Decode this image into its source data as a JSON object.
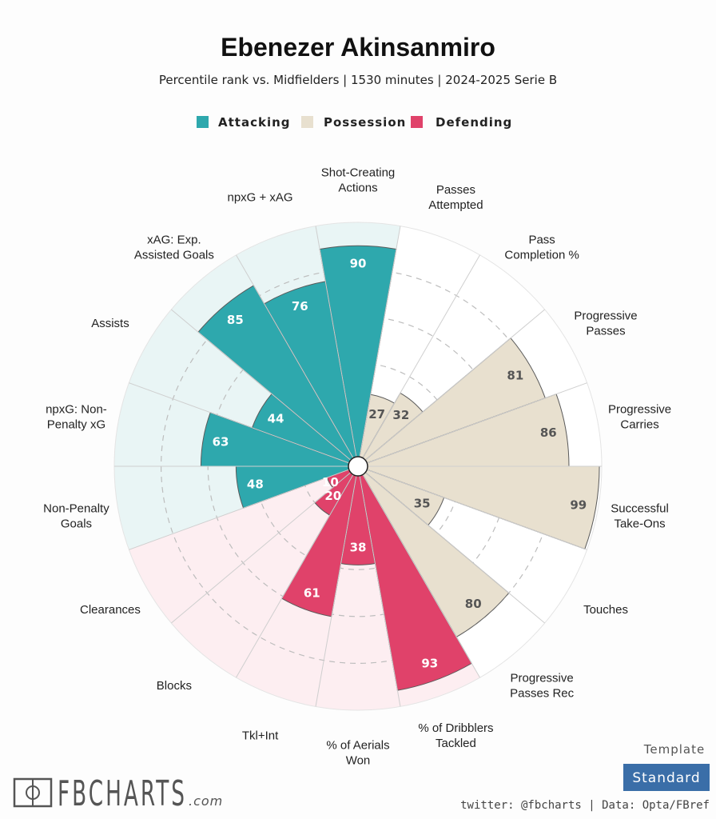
{
  "header": {
    "title": "Ebenezer Akinsanmiro",
    "subtitle": "Percentile rank vs. Midfielders | 1530 minutes | 2024-2025 Serie B"
  },
  "legend": [
    {
      "label": "Attacking",
      "color": "#2ea8ad"
    },
    {
      "label": "Possession",
      "color": "#e8e0cf"
    },
    {
      "label": "Defending",
      "color": "#e0426a"
    }
  ],
  "chart_data": {
    "type": "pizza",
    "value_range": [
      0,
      100
    ],
    "grid_rings": [
      20,
      40,
      60,
      80
    ],
    "background_colors": {
      "Attacking": "#e9f5f5",
      "Possession": "#ffffff",
      "Defending": "#fdeef1"
    },
    "slices": [
      {
        "label": "Shot-Creating\nActions",
        "value": 90,
        "group": "Attacking"
      },
      {
        "label": "Passes\nAttempted",
        "value": 27,
        "group": "Possession"
      },
      {
        "label": "Pass\nCompletion %",
        "value": 32,
        "group": "Possession"
      },
      {
        "label": "Progressive\nPasses",
        "value": 81,
        "group": "Possession"
      },
      {
        "label": "Progressive\nCarries",
        "value": 86,
        "group": "Possession"
      },
      {
        "label": "Successful\nTake-Ons",
        "value": 99,
        "group": "Possession"
      },
      {
        "label": "Touches",
        "value": 35,
        "group": "Possession"
      },
      {
        "label": "Progressive\nPasses Rec",
        "value": 80,
        "group": "Possession"
      },
      {
        "label": "% of Dribblers\nTackled",
        "value": 93,
        "group": "Defending"
      },
      {
        "label": "% of Aerials\nWon",
        "value": 38,
        "group": "Defending"
      },
      {
        "label": "Tkl+Int",
        "value": 61,
        "group": "Defending"
      },
      {
        "label": "Blocks",
        "value": 20,
        "group": "Defending"
      },
      {
        "label": "Clearances",
        "value": 10,
        "group": "Defending"
      },
      {
        "label": "Non-Penalty\nGoals",
        "value": 48,
        "group": "Attacking"
      },
      {
        "label": "npxG: Non-\nPenalty xG",
        "value": 63,
        "group": "Attacking"
      },
      {
        "label": "Assists",
        "value": 44,
        "group": "Attacking"
      },
      {
        "label": "xAG: Exp.\nAssisted Goals",
        "value": 85,
        "group": "Attacking"
      },
      {
        "label": "npxG + xAG",
        "value": 76,
        "group": "Attacking"
      }
    ]
  },
  "footer": {
    "brand": "FBCHARTS",
    "brand_suffix": ".com",
    "template_label": "Template",
    "template_button": "Standard",
    "template_button_color": "#3a6ea8",
    "credits": "twitter: @fbcharts | Data: Opta/FBref"
  }
}
